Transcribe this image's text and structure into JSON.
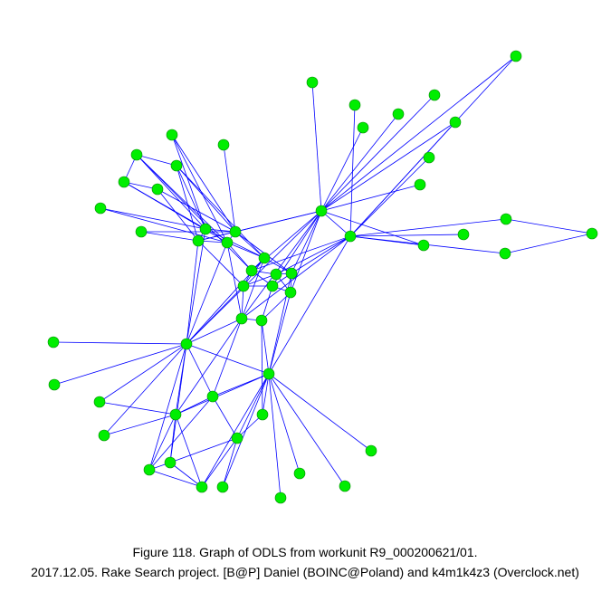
{
  "caption": {
    "line1": "Figure 118. Graph of ODLS from workunit R9_000200621/01.",
    "line2": "2017.12.05. Rake Search project. [B@P] Daniel (BOINC@Poland) and k4m1k4z3 (Overclock.net)"
  }
}
